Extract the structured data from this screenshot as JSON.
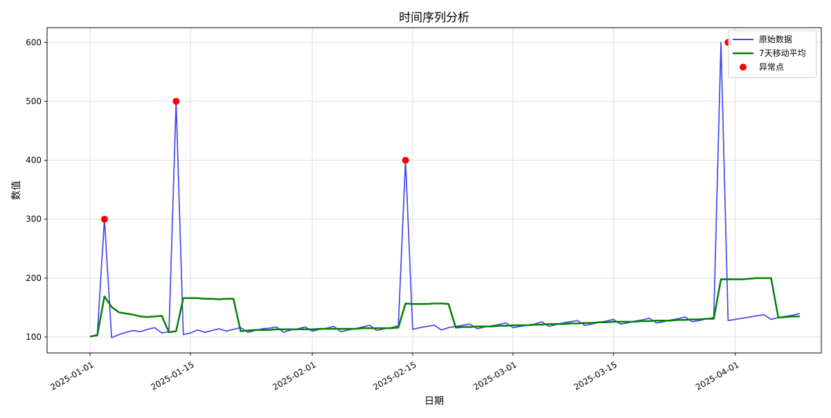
{
  "chart_data": {
    "type": "line",
    "title": "时间序列分析",
    "xlabel": "日期",
    "ylabel": "数值",
    "xlim": [
      "2024-12-26",
      "2025-04-13"
    ],
    "ylim": [
      73,
      625
    ],
    "x_ticks": [
      "2025-01-01",
      "2025-01-15",
      "2025-02-01",
      "2025-02-15",
      "2025-03-01",
      "2025-03-15",
      "2025-04-01"
    ],
    "y_ticks": [
      100,
      200,
      300,
      400,
      500,
      600
    ],
    "grid": true,
    "legend_position": "top-right",
    "colors": {
      "raw": "#4444ee",
      "ma": "#008000",
      "anomaly": "#ff0000"
    },
    "series": [
      {
        "name": "原始数据",
        "style": "line",
        "x": [
          "2025-01-01",
          "2025-01-02",
          "2025-01-03",
          "2025-01-04",
          "2025-01-05",
          "2025-01-06",
          "2025-01-07",
          "2025-01-08",
          "2025-01-09",
          "2025-01-10",
          "2025-01-11",
          "2025-01-12",
          "2025-01-13",
          "2025-01-14",
          "2025-01-15",
          "2025-01-16",
          "2025-01-17",
          "2025-01-18",
          "2025-01-19",
          "2025-01-20",
          "2025-01-21",
          "2025-01-22",
          "2025-01-23",
          "2025-01-24",
          "2025-01-25",
          "2025-01-26",
          "2025-01-27",
          "2025-01-28",
          "2025-01-29",
          "2025-01-30",
          "2025-01-31",
          "2025-02-01",
          "2025-02-02",
          "2025-02-03",
          "2025-02-04",
          "2025-02-05",
          "2025-02-06",
          "2025-02-07",
          "2025-02-08",
          "2025-02-09",
          "2025-02-10",
          "2025-02-11",
          "2025-02-12",
          "2025-02-13",
          "2025-02-14",
          "2025-02-15",
          "2025-02-16",
          "2025-02-17",
          "2025-02-18",
          "2025-02-19",
          "2025-02-20",
          "2025-02-21",
          "2025-02-22",
          "2025-02-23",
          "2025-02-24",
          "2025-02-25",
          "2025-02-26",
          "2025-02-27",
          "2025-02-28",
          "2025-03-01",
          "2025-03-02",
          "2025-03-03",
          "2025-03-04",
          "2025-03-05",
          "2025-03-06",
          "2025-03-07",
          "2025-03-08",
          "2025-03-09",
          "2025-03-10",
          "2025-03-11",
          "2025-03-12",
          "2025-03-13",
          "2025-03-14",
          "2025-03-15",
          "2025-03-16",
          "2025-03-17",
          "2025-03-18",
          "2025-03-19",
          "2025-03-20",
          "2025-03-21",
          "2025-03-22",
          "2025-03-23",
          "2025-03-24",
          "2025-03-25",
          "2025-03-26",
          "2025-03-27",
          "2025-03-28",
          "2025-03-29",
          "2025-03-30",
          "2025-03-31",
          "2025-04-01",
          "2025-04-02",
          "2025-04-03",
          "2025-04-04",
          "2025-04-05",
          "2025-04-06",
          "2025-04-07",
          "2025-04-08",
          "2025-04-09",
          "2025-04-10"
        ],
        "values": [
          101,
          104,
          300,
          99,
          104,
          108,
          111,
          109,
          113,
          116,
          107,
          109,
          500,
          104,
          107,
          112,
          108,
          111,
          114,
          110,
          113,
          116,
          108,
          111,
          114,
          115,
          117,
          108,
          112,
          114,
          117,
          110,
          113,
          115,
          118,
          109,
          112,
          114,
          117,
          120,
          111,
          114,
          116,
          119,
          400,
          113,
          116,
          118,
          120,
          112,
          116,
          118,
          120,
          122,
          114,
          117,
          119,
          121,
          124,
          116,
          118,
          120,
          122,
          126,
          118,
          121,
          124,
          126,
          128,
          120,
          122,
          125,
          127,
          130,
          122,
          124,
          127,
          129,
          132,
          124,
          126,
          129,
          131,
          134,
          126,
          128,
          131,
          133,
          600,
          128,
          130,
          132,
          134,
          136,
          138,
          130,
          133,
          135,
          137,
          140
        ]
      },
      {
        "name": "7天移动平均",
        "style": "line",
        "x": [
          "2025-01-01",
          "2025-01-02",
          "2025-01-03",
          "2025-01-04",
          "2025-01-05",
          "2025-01-06",
          "2025-01-07",
          "2025-01-08",
          "2025-01-09",
          "2025-01-10",
          "2025-01-11",
          "2025-01-12",
          "2025-01-13",
          "2025-01-14",
          "2025-01-15",
          "2025-01-16",
          "2025-01-17",
          "2025-01-18",
          "2025-01-19",
          "2025-01-20",
          "2025-01-21",
          "2025-01-22",
          "2025-01-23",
          "2025-01-24",
          "2025-01-25",
          "2025-01-26",
          "2025-01-27",
          "2025-01-28",
          "2025-01-29",
          "2025-01-30",
          "2025-01-31",
          "2025-02-01",
          "2025-02-02",
          "2025-02-03",
          "2025-02-04",
          "2025-02-05",
          "2025-02-06",
          "2025-02-07",
          "2025-02-08",
          "2025-02-09",
          "2025-02-10",
          "2025-02-11",
          "2025-02-12",
          "2025-02-13",
          "2025-02-14",
          "2025-02-15",
          "2025-02-16",
          "2025-02-17",
          "2025-02-18",
          "2025-02-19",
          "2025-02-20",
          "2025-02-21",
          "2025-02-22",
          "2025-02-23",
          "2025-02-24",
          "2025-02-25",
          "2025-02-26",
          "2025-02-27",
          "2025-02-28",
          "2025-03-01",
          "2025-03-02",
          "2025-03-03",
          "2025-03-04",
          "2025-03-05",
          "2025-03-06",
          "2025-03-07",
          "2025-03-08",
          "2025-03-09",
          "2025-03-10",
          "2025-03-11",
          "2025-03-12",
          "2025-03-13",
          "2025-03-14",
          "2025-03-15",
          "2025-03-16",
          "2025-03-17",
          "2025-03-18",
          "2025-03-19",
          "2025-03-20",
          "2025-03-21",
          "2025-03-22",
          "2025-03-23",
          "2025-03-24",
          "2025-03-25",
          "2025-03-26",
          "2025-03-27",
          "2025-03-28",
          "2025-03-29",
          "2025-03-30",
          "2025-03-31",
          "2025-04-01",
          "2025-04-02",
          "2025-04-03",
          "2025-04-04",
          "2025-04-05",
          "2025-04-06",
          "2025-04-07",
          "2025-04-08",
          "2025-04-09",
          "2025-04-10"
        ],
        "values": [
          101,
          103,
          169,
          151,
          142,
          140,
          138,
          135,
          134,
          135,
          136,
          108,
          110,
          166,
          166,
          166,
          165,
          165,
          164,
          165,
          165,
          110,
          111,
          112,
          112,
          112,
          113,
          113,
          113,
          113,
          113,
          113,
          114,
          114,
          114,
          114,
          114,
          114,
          115,
          115,
          115,
          115,
          115,
          116,
          157,
          156,
          156,
          156,
          157,
          157,
          156,
          116,
          117,
          117,
          118,
          118,
          118,
          119,
          119,
          120,
          120,
          120,
          121,
          121,
          122,
          122,
          122,
          123,
          123,
          124,
          124,
          125,
          125,
          126,
          126,
          126,
          126,
          127,
          127,
          128,
          128,
          128,
          129,
          129,
          130,
          130,
          131,
          131,
          198,
          198,
          198,
          198,
          199,
          200,
          200,
          200,
          133,
          134,
          135,
          135
        ]
      },
      {
        "name": "异常点",
        "style": "scatter",
        "x": [
          "2025-01-03",
          "2025-01-13",
          "2025-02-14",
          "2025-03-31"
        ],
        "values": [
          300,
          500,
          400,
          600
        ]
      }
    ]
  }
}
